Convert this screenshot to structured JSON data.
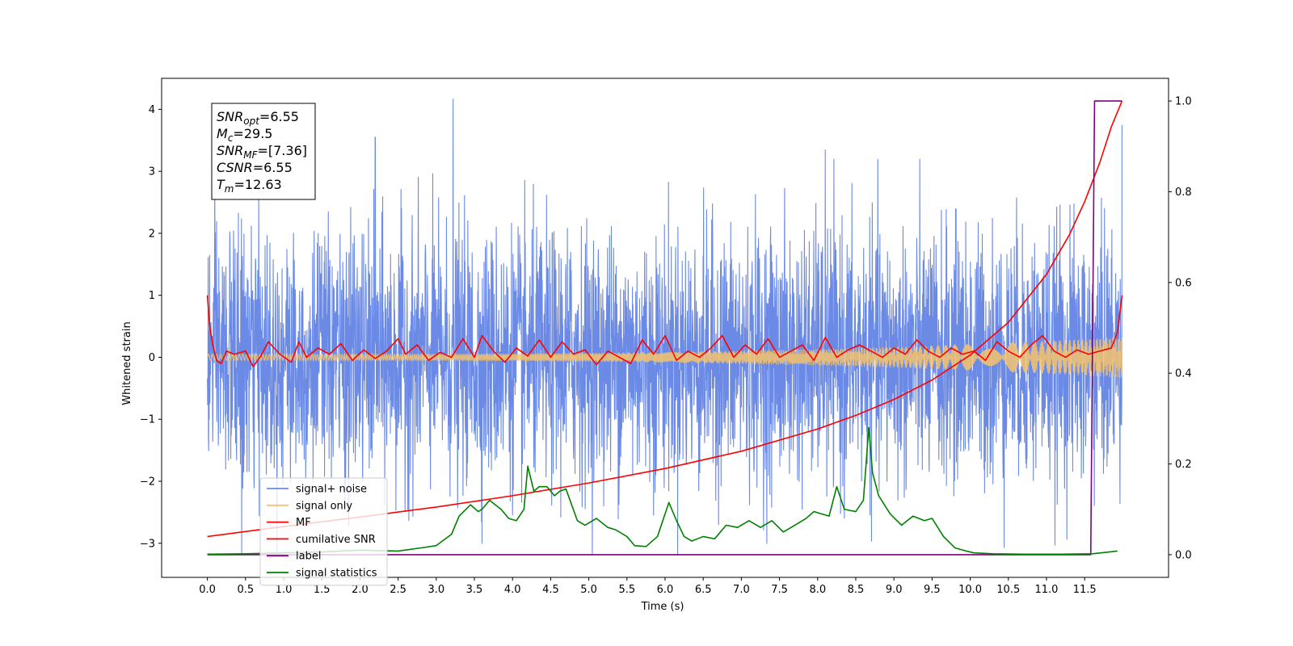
{
  "chart_data": {
    "type": "line",
    "title": "",
    "xlabel": "Time (s)",
    "ylabel": "Whitened strain",
    "xlim": [
      -0.6,
      12.6
    ],
    "ylim": [
      -3.55,
      4.5
    ],
    "y2lim": [
      -0.05,
      1.05
    ],
    "xticks": [
      0.0,
      0.5,
      1.0,
      1.5,
      2.0,
      2.5,
      3.0,
      3.5,
      4.0,
      4.5,
      5.0,
      5.5,
      6.0,
      6.5,
      7.0,
      7.5,
      8.0,
      8.5,
      9.0,
      9.5,
      10.0,
      10.5,
      11.0,
      11.5
    ],
    "xtick_labels": [
      "0.0",
      "0.5",
      "1.0",
      "1.5",
      "2.0",
      "2.5",
      "3.0",
      "3.5",
      "4.0",
      "4.5",
      "5.0",
      "5.5",
      "6.0",
      "6.5",
      "7.0",
      "7.5",
      "8.0",
      "8.5",
      "9.0",
      "9.5",
      "10.0",
      "10.5",
      "11.0",
      "11.5"
    ],
    "yticks": [
      -3,
      -2,
      -1,
      0,
      1,
      2,
      3,
      4
    ],
    "ytick_labels": [
      "−3",
      "−2",
      "−1",
      "0",
      "1",
      "2",
      "3",
      "4"
    ],
    "y2ticks": [
      0.0,
      0.2,
      0.4,
      0.6,
      0.8,
      1.0
    ],
    "y2tick_labels": [
      "0.0",
      "0.2",
      "0.4",
      "0.6",
      "0.8",
      "1.0"
    ],
    "grid": false,
    "legend_position": "lower-left",
    "series": [
      {
        "name": "signal+ noise",
        "color": "#6b8ae6",
        "axis": "left",
        "style": "noisy-strain",
        "x_range": [
          0.0,
          11.99
        ],
        "typical_amplitude": 1.0,
        "peaks": [
          [
            3.22,
            4.17
          ],
          [
            2.2,
            3.55
          ],
          [
            8.1,
            3.35
          ],
          [
            11.99,
            3.75
          ],
          [
            0.45,
            -3.2
          ],
          [
            8.35,
            -2.6
          ]
        ]
      },
      {
        "name": "signal only",
        "color": "#f5c26b",
        "axis": "left",
        "style": "chirp",
        "x_range": [
          0.0,
          11.99
        ],
        "amplitude_start": 0.05,
        "amplitude_end": 0.33
      },
      {
        "name": "MF",
        "color": "#ff0000",
        "axis": "left",
        "x": [
          0.0,
          0.03,
          0.07,
          0.12,
          0.18,
          0.25,
          0.35,
          0.5,
          0.6,
          0.7,
          0.8,
          0.95,
          1.1,
          1.2,
          1.3,
          1.45,
          1.6,
          1.75,
          1.9,
          2.05,
          2.2,
          2.35,
          2.5,
          2.6,
          2.75,
          2.9,
          3.05,
          3.2,
          3.35,
          3.5,
          3.6,
          3.75,
          3.9,
          4.05,
          4.2,
          4.35,
          4.5,
          4.65,
          4.8,
          4.95,
          5.1,
          5.25,
          5.4,
          5.55,
          5.7,
          5.85,
          6.0,
          6.15,
          6.3,
          6.45,
          6.6,
          6.75,
          6.9,
          7.05,
          7.2,
          7.35,
          7.5,
          7.65,
          7.8,
          7.95,
          8.1,
          8.25,
          8.4,
          8.55,
          8.7,
          8.85,
          9.0,
          9.15,
          9.3,
          9.45,
          9.6,
          9.75,
          9.9,
          10.05,
          10.2,
          10.35,
          10.5,
          10.65,
          10.8,
          10.95,
          11.1,
          11.25,
          11.4,
          11.55,
          11.7,
          11.85,
          11.93,
          11.99
        ],
        "y": [
          1.0,
          0.5,
          0.2,
          -0.05,
          -0.1,
          0.1,
          0.05,
          0.1,
          -0.15,
          0.02,
          0.25,
          0.05,
          -0.08,
          0.25,
          0.0,
          0.15,
          0.05,
          0.22,
          -0.05,
          0.12,
          -0.02,
          0.1,
          0.3,
          0.05,
          0.2,
          -0.05,
          0.08,
          0.0,
          0.3,
          0.0,
          0.35,
          0.1,
          -0.08,
          0.15,
          0.02,
          0.28,
          0.0,
          0.25,
          0.05,
          0.12,
          -0.12,
          0.1,
          0.0,
          -0.1,
          0.28,
          0.05,
          0.35,
          -0.05,
          0.1,
          0.0,
          0.15,
          0.35,
          0.0,
          0.2,
          0.05,
          0.3,
          0.0,
          0.1,
          0.2,
          -0.05,
          0.32,
          0.0,
          0.12,
          0.2,
          0.1,
          0.0,
          0.15,
          0.05,
          0.28,
          0.1,
          0.0,
          0.15,
          0.05,
          0.1,
          -0.05,
          0.25,
          0.1,
          0.0,
          0.2,
          0.35,
          0.1,
          0.0,
          0.12,
          0.05,
          0.1,
          0.15,
          0.4,
          1.0
        ]
      },
      {
        "name": "cumilative SNR",
        "color": "#ff0000",
        "axis": "right",
        "x": [
          0.0,
          1.0,
          2.0,
          3.0,
          4.0,
          5.0,
          6.0,
          7.0,
          8.0,
          8.5,
          9.0,
          9.5,
          10.0,
          10.5,
          11.0,
          11.3,
          11.5,
          11.7,
          11.85,
          11.99
        ],
        "y": [
          0.04,
          0.062,
          0.083,
          0.105,
          0.13,
          0.158,
          0.19,
          0.228,
          0.277,
          0.307,
          0.342,
          0.385,
          0.44,
          0.512,
          0.618,
          0.705,
          0.778,
          0.865,
          0.943,
          1.0
        ]
      },
      {
        "name": "label",
        "color": "#800080",
        "axis": "right",
        "x": [
          0.0,
          11.58,
          11.63,
          11.99
        ],
        "y": [
          0.0,
          0.0,
          1.0,
          1.0
        ]
      },
      {
        "name": "signal statistics",
        "color": "#008000",
        "axis": "right",
        "x": [
          0.0,
          0.5,
          1.0,
          1.5,
          2.0,
          2.5,
          2.8,
          3.0,
          3.2,
          3.3,
          3.45,
          3.55,
          3.6,
          3.7,
          3.75,
          3.85,
          3.95,
          4.05,
          4.15,
          4.2,
          4.28,
          4.35,
          4.45,
          4.55,
          4.62,
          4.7,
          4.85,
          4.95,
          5.1,
          5.25,
          5.35,
          5.5,
          5.6,
          5.75,
          5.9,
          6.05,
          6.15,
          6.25,
          6.35,
          6.5,
          6.65,
          6.8,
          6.95,
          7.1,
          7.25,
          7.4,
          7.55,
          7.7,
          7.85,
          7.95,
          8.05,
          8.15,
          8.25,
          8.35,
          8.5,
          8.6,
          8.67,
          8.72,
          8.8,
          8.95,
          9.1,
          9.25,
          9.4,
          9.5,
          9.65,
          9.8,
          9.95,
          10.05,
          10.3,
          10.7,
          11.2,
          11.6,
          11.93
        ],
        "y": [
          0.001,
          0.002,
          0.004,
          0.006,
          0.01,
          0.008,
          0.015,
          0.02,
          0.045,
          0.085,
          0.11,
          0.095,
          0.1,
          0.12,
          0.113,
          0.1,
          0.08,
          0.075,
          0.1,
          0.195,
          0.14,
          0.15,
          0.15,
          0.13,
          0.14,
          0.145,
          0.075,
          0.065,
          0.08,
          0.06,
          0.055,
          0.04,
          0.02,
          0.018,
          0.04,
          0.115,
          0.075,
          0.04,
          0.03,
          0.04,
          0.035,
          0.065,
          0.06,
          0.075,
          0.06,
          0.075,
          0.05,
          0.065,
          0.08,
          0.095,
          0.09,
          0.085,
          0.15,
          0.1,
          0.095,
          0.12,
          0.28,
          0.18,
          0.13,
          0.09,
          0.065,
          0.085,
          0.075,
          0.08,
          0.04,
          0.015,
          0.008,
          0.004,
          0.002,
          0.001,
          0.001,
          0.002,
          0.008
        ]
      }
    ],
    "annotation": {
      "lines": [
        {
          "sym": "SNR",
          "sub": "opt",
          "value": "=6.55"
        },
        {
          "sym": "M",
          "sub": "c",
          "value": "=29.5"
        },
        {
          "sym": "SNR",
          "sub": "MF",
          "value": "=[7.36]"
        },
        {
          "sym": "CSNR",
          "sub": "",
          "value": "=6.55"
        },
        {
          "sym": "T",
          "sub": "m",
          "value": "=12.63"
        }
      ]
    }
  }
}
